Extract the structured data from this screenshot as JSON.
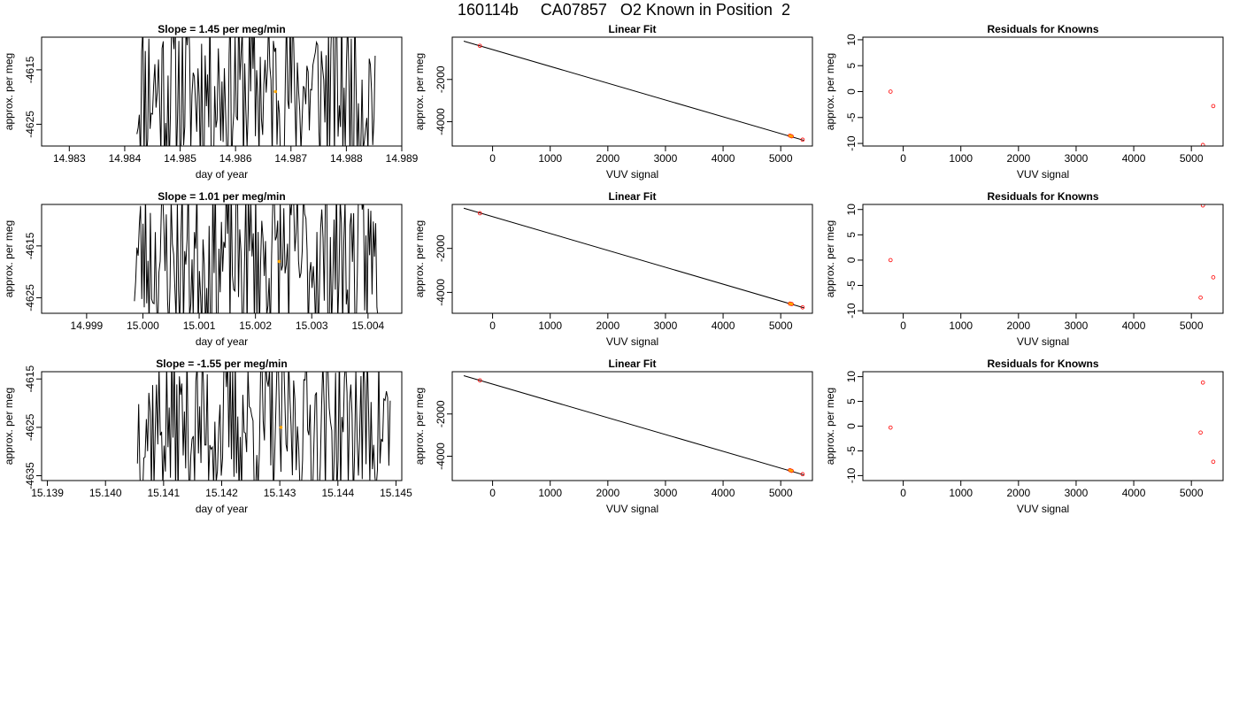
{
  "page": {
    "title": "160114b     CA07857   O2 Known in Position  2"
  },
  "colors": {
    "trace": "#000000",
    "marker_orange": "#ffa500",
    "residual_red": "#ff0000",
    "fit_line": "#000000"
  },
  "chart_data": [
    {
      "row": 1,
      "col": 1,
      "type": "line",
      "title": "Slope =  1.45  per meg/min",
      "xlabel": "day of year",
      "ylabel": "approx. per meg",
      "xlim": [
        14.9825,
        14.989
      ],
      "ylim": [
        -4629,
        -4609
      ],
      "xticks": [
        14.983,
        14.984,
        14.985,
        14.986,
        14.987,
        14.988,
        14.989
      ],
      "xtick_labels": [
        "14.983",
        "14.984",
        "14.985",
        "14.986",
        "14.987",
        "14.988",
        "14.989"
      ],
      "yticks": [
        -4615,
        -4625
      ],
      "ytick_labels": [
        "-4615",
        "-4625"
      ],
      "trace": {
        "x_start": 14.98422,
        "x_end": 14.98852,
        "n": 200,
        "mean": -4618.5,
        "amplitude": 16,
        "seed": 11
      },
      "marker": {
        "x": 14.98672,
        "y": -4619.0
      }
    },
    {
      "row": 1,
      "col": 2,
      "type": "scatter",
      "title": "Linear Fit",
      "xlabel": "VUV signal",
      "ylabel": "approx. per meg",
      "xlim": [
        -700,
        5550
      ],
      "ylim": [
        -5150,
        0
      ],
      "xticks": [
        0,
        1000,
        2000,
        3000,
        4000,
        5000
      ],
      "xtick_labels": [
        "0",
        "1000",
        "2000",
        "3000",
        "4000",
        "5000"
      ],
      "yticks": [
        -2000,
        -4000
      ],
      "ytick_labels": [
        "-2000",
        "-4000"
      ],
      "fit_line": {
        "x": [
          -500,
          5400
        ],
        "y": [
          -190,
          -4880
        ]
      },
      "points": [
        {
          "x": -220,
          "y": -410
        },
        {
          "x": 5160,
          "y": -4660
        },
        {
          "x": 5190,
          "y": -4690
        },
        {
          "x": 5380,
          "y": -4850
        }
      ]
    },
    {
      "row": 1,
      "col": 3,
      "type": "scatter",
      "title": "Residuals for Knowns",
      "xlabel": "VUV signal",
      "ylabel": "approx. per meg",
      "xlim": [
        -700,
        5550
      ],
      "ylim": [
        -10.5,
        10.5
      ],
      "xticks": [
        0,
        1000,
        2000,
        3000,
        4000,
        5000
      ],
      "xtick_labels": [
        "0",
        "1000",
        "2000",
        "3000",
        "4000",
        "5000"
      ],
      "yticks": [
        10,
        5,
        0,
        -5,
        -10
      ],
      "ytick_labels": [
        "10",
        "5",
        "0",
        "-5",
        "-10"
      ],
      "points": [
        {
          "x": -220,
          "y": 0.0
        },
        {
          "x": 5380,
          "y": -2.8
        },
        {
          "x": 5200,
          "y": -10.3
        }
      ]
    },
    {
      "row": 2,
      "col": 1,
      "type": "line",
      "title": "Slope =  1.01  per meg/min",
      "xlabel": "day of year",
      "ylabel": "approx. per meg",
      "xlim": [
        14.9982,
        15.0046
      ],
      "ylim": [
        -4628,
        -4607
      ],
      "xticks": [
        14.999,
        15.0,
        15.001,
        15.002,
        15.003,
        15.004
      ],
      "xtick_labels": [
        "14.999",
        "15.000",
        "15.001",
        "15.002",
        "15.003",
        "15.004"
      ],
      "yticks": [
        -4615,
        -4625
      ],
      "ytick_labels": [
        "-4615",
        "-4625"
      ],
      "trace": {
        "x_start": 14.99985,
        "x_end": 15.00418,
        "n": 200,
        "mean": -4617.5,
        "amplitude": 16,
        "seed": 23
      },
      "marker": {
        "x": 15.00242,
        "y": -4618.0
      }
    },
    {
      "row": 2,
      "col": 2,
      "type": "scatter",
      "title": "Linear Fit",
      "xlabel": "VUV signal",
      "ylabel": "approx. per meg",
      "xlim": [
        -700,
        5550
      ],
      "ylim": [
        -4950,
        0
      ],
      "xticks": [
        0,
        1000,
        2000,
        3000,
        4000,
        5000
      ],
      "xtick_labels": [
        "0",
        "1000",
        "2000",
        "3000",
        "4000",
        "5000"
      ],
      "yticks": [
        -2000,
        -4000
      ],
      "ytick_labels": [
        "-2000",
        "-4000"
      ],
      "fit_line": {
        "x": [
          -500,
          5400
        ],
        "y": [
          -170,
          -4700
        ]
      },
      "points": [
        {
          "x": -220,
          "y": -400
        },
        {
          "x": 5160,
          "y": -4510
        },
        {
          "x": 5190,
          "y": -4530
        },
        {
          "x": 5380,
          "y": -4680
        }
      ]
    },
    {
      "row": 2,
      "col": 3,
      "type": "scatter",
      "title": "Residuals for Knowns",
      "xlabel": "VUV signal",
      "ylabel": "approx. per meg",
      "xlim": [
        -700,
        5550
      ],
      "ylim": [
        -10.5,
        11
      ],
      "xticks": [
        0,
        1000,
        2000,
        3000,
        4000,
        5000
      ],
      "xtick_labels": [
        "0",
        "1000",
        "2000",
        "3000",
        "4000",
        "5000"
      ],
      "yticks": [
        10,
        5,
        0,
        -5,
        -10
      ],
      "ytick_labels": [
        "10",
        "5",
        "0",
        "-5",
        "-10"
      ],
      "points": [
        {
          "x": -220,
          "y": 0.0
        },
        {
          "x": 5380,
          "y": -3.4
        },
        {
          "x": 5160,
          "y": -7.4
        },
        {
          "x": 5200,
          "y": 10.8
        }
      ]
    },
    {
      "row": 3,
      "col": 1,
      "type": "line",
      "title": "Slope =  -1.55  per meg/min",
      "xlabel": "day of year",
      "ylabel": "approx. per meg",
      "xlim": [
        15.1389,
        15.1451
      ],
      "ylim": [
        -4636,
        -4613.5
      ],
      "xticks": [
        15.139,
        15.14,
        15.141,
        15.142,
        15.143,
        15.144,
        15.145
      ],
      "xtick_labels": [
        "15.139",
        "15.140",
        "15.141",
        "15.142",
        "15.143",
        "15.144",
        "15.145"
      ],
      "yticks": [
        -4615,
        -4625,
        -4635
      ],
      "ytick_labels": [
        "-4615",
        "-4625",
        "-4635"
      ],
      "trace": {
        "x_start": 15.14055,
        "x_end": 15.1449,
        "n": 200,
        "mean": -4624.5,
        "amplitude": 16,
        "seed": 37
      },
      "marker": {
        "x": 15.14302,
        "y": -4625.0
      }
    },
    {
      "row": 3,
      "col": 2,
      "type": "scatter",
      "title": "Linear Fit",
      "xlabel": "VUV signal",
      "ylabel": "approx. per meg",
      "xlim": [
        -700,
        5550
      ],
      "ylim": [
        -5150,
        0
      ],
      "xticks": [
        0,
        1000,
        2000,
        3000,
        4000,
        5000
      ],
      "xtick_labels": [
        "0",
        "1000",
        "2000",
        "3000",
        "4000",
        "5000"
      ],
      "yticks": [
        -2000,
        -4000
      ],
      "ytick_labels": [
        "-2000",
        "-4000"
      ],
      "fit_line": {
        "x": [
          -500,
          5400
        ],
        "y": [
          -190,
          -4880
        ]
      },
      "points": [
        {
          "x": -220,
          "y": -410
        },
        {
          "x": 5160,
          "y": -4660
        },
        {
          "x": 5190,
          "y": -4690
        },
        {
          "x": 5380,
          "y": -4850
        }
      ]
    },
    {
      "row": 3,
      "col": 3,
      "type": "scatter",
      "title": "Residuals for Knowns",
      "xlabel": "VUV signal",
      "ylabel": "approx. per meg",
      "xlim": [
        -700,
        5550
      ],
      "ylim": [
        -11,
        11
      ],
      "xticks": [
        0,
        1000,
        2000,
        3000,
        4000,
        5000
      ],
      "xtick_labels": [
        "0",
        "1000",
        "2000",
        "3000",
        "4000",
        "5000"
      ],
      "yticks": [
        10,
        5,
        0,
        -5,
        -10
      ],
      "ytick_labels": [
        "10",
        "5",
        "0",
        "-5",
        "-10"
      ],
      "points": [
        {
          "x": -220,
          "y": -0.3
        },
        {
          "x": 5200,
          "y": 8.8
        },
        {
          "x": 5160,
          "y": -1.3
        },
        {
          "x": 5380,
          "y": -7.2
        }
      ]
    }
  ]
}
